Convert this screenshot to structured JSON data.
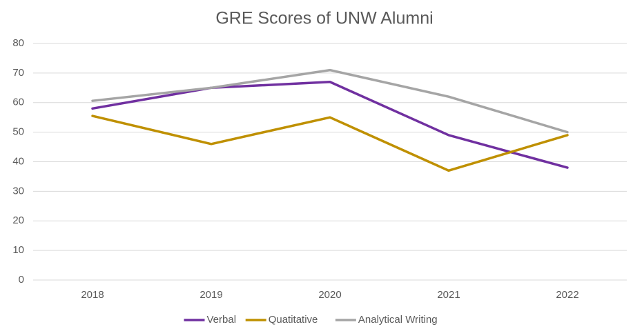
{
  "chart_data": {
    "type": "line",
    "title": "GRE Scores of UNW Alumni",
    "categories": [
      "2018",
      "2019",
      "2020",
      "2021",
      "2022"
    ],
    "series": [
      {
        "name": "Verbal",
        "color": "#7030a0",
        "values": [
          58,
          65,
          67,
          49,
          38
        ]
      },
      {
        "name": "Quatitative",
        "color": "#bf9000",
        "values": [
          55.5,
          46,
          55,
          37,
          49
        ]
      },
      {
        "name": "Analytical Writing",
        "color": "#a5a5a5",
        "values": [
          60.6,
          65,
          71,
          62,
          50
        ]
      }
    ],
    "ylim": [
      0,
      80
    ],
    "yticks": [
      0,
      10,
      20,
      30,
      40,
      50,
      60,
      70,
      80
    ],
    "grid": true,
    "legend": "bottom"
  }
}
